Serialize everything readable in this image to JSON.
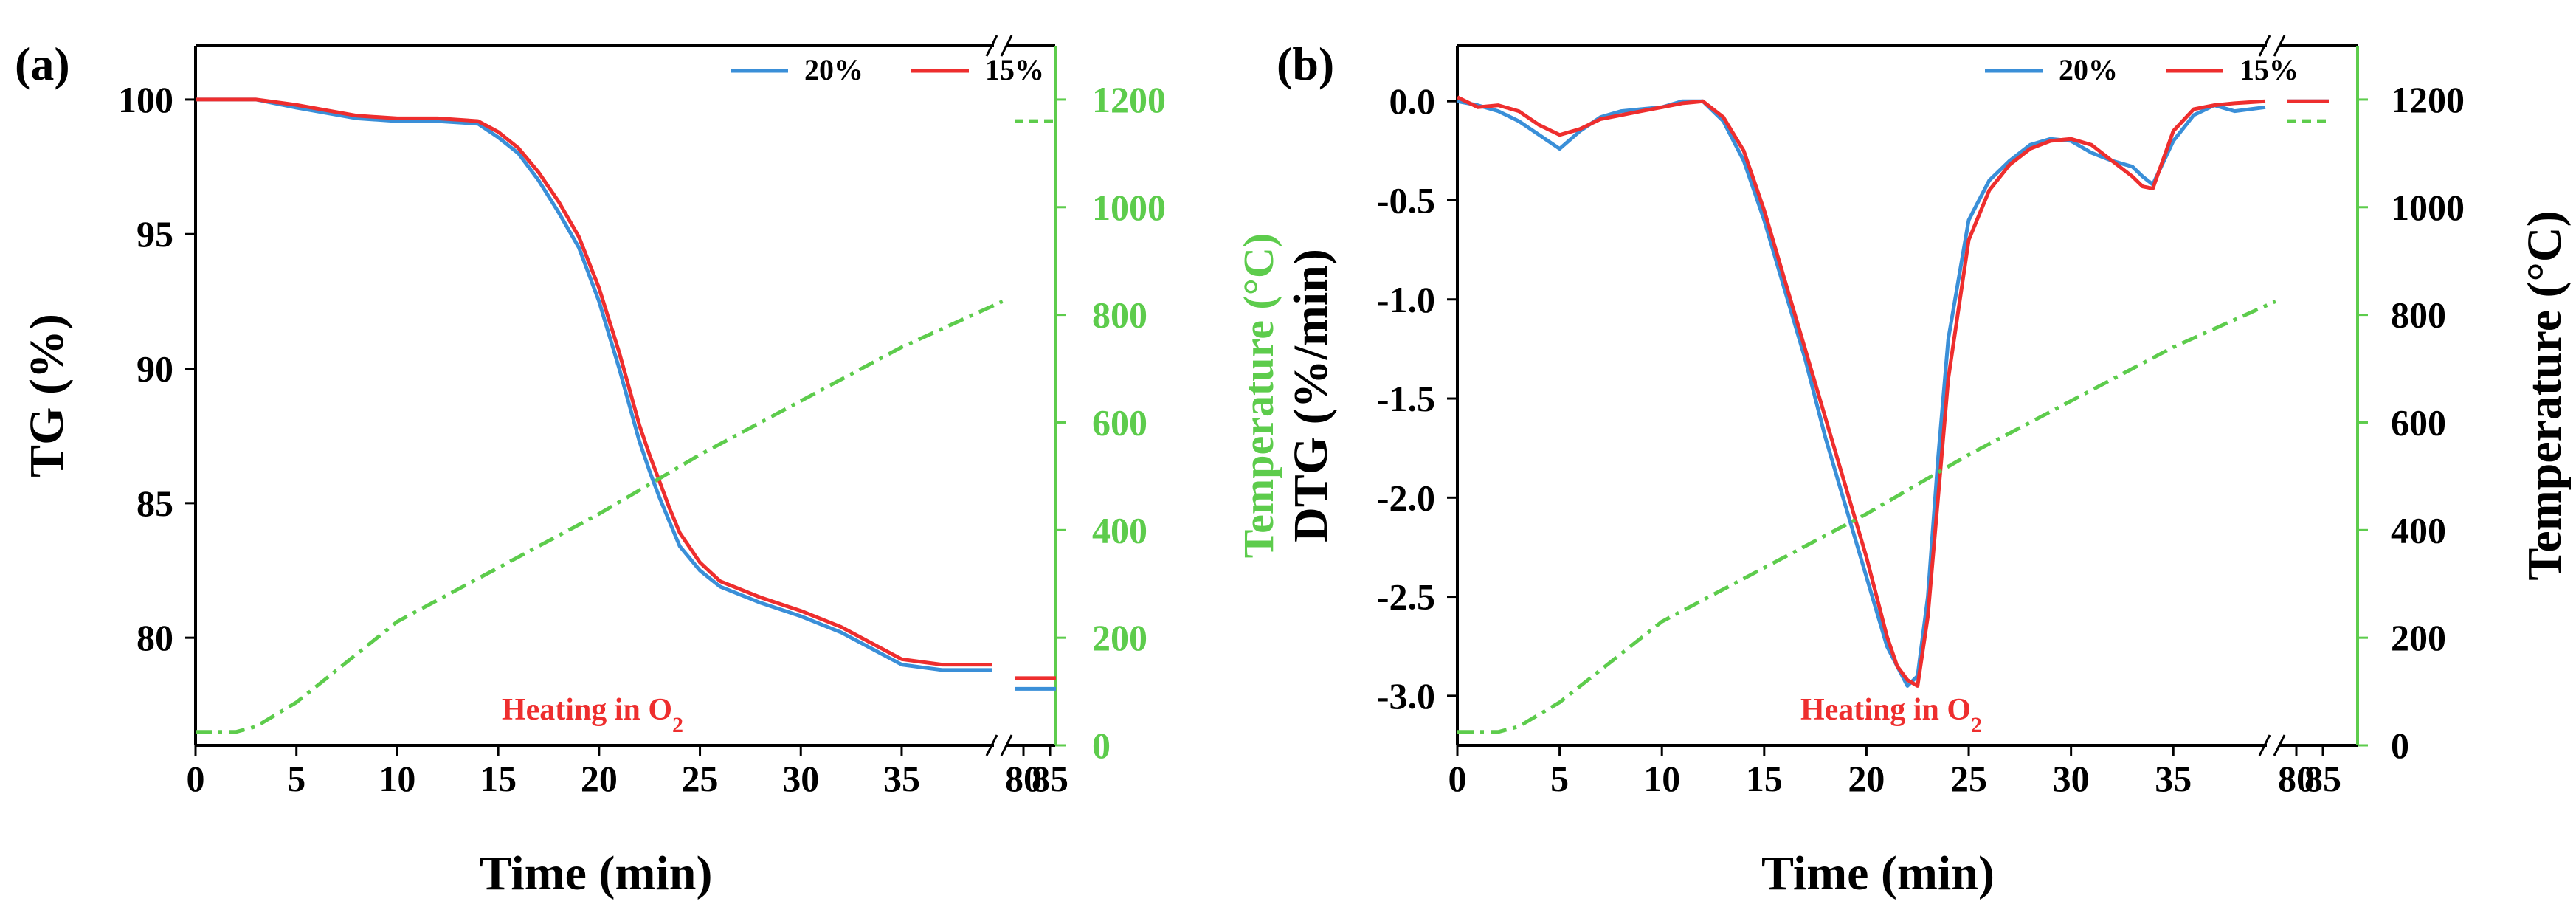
{
  "colors": {
    "s20": "#3a8fd8",
    "s15": "#ee2e2e",
    "temp": "#5dcc4c",
    "axis": "#000000"
  },
  "chart_data": [
    {
      "panel": "(a)",
      "type": "line",
      "xlabel": "Time (min)",
      "ylabel": "TG (%)",
      "y2label": "Temperature (°C)",
      "ylim": [
        76,
        102
      ],
      "y2lim": [
        0,
        1300
      ],
      "xticks": [
        "0",
        "5",
        "10",
        "15",
        "20",
        "25",
        "30",
        "35",
        "80",
        "85"
      ],
      "yticks": [
        "80",
        "85",
        "90",
        "95",
        "100"
      ],
      "y2ticks": [
        "0",
        "200",
        "400",
        "600",
        "800",
        "1000",
        "1200"
      ],
      "annotation": "Heating in O",
      "annotation_sub": "2",
      "legend": [
        "20%",
        "15%"
      ],
      "series": [
        {
          "name": "20%",
          "x": [
            0,
            3,
            5,
            8,
            10,
            12,
            14,
            15,
            16,
            17,
            18,
            19,
            20,
            21,
            22,
            22.5,
            23,
            23.5,
            24,
            25,
            26,
            28,
            30,
            32,
            34,
            35,
            36,
            37,
            38,
            39.5
          ],
          "y": [
            100,
            100,
            99.7,
            99.3,
            99.2,
            99.2,
            99.1,
            98.6,
            98,
            97,
            95.8,
            94.5,
            92.5,
            90,
            87.3,
            86.2,
            85.2,
            84.3,
            83.4,
            82.5,
            81.9,
            81.3,
            80.8,
            80.2,
            79.4,
            79,
            78.9,
            78.8,
            78.8,
            78.8
          ]
        },
        {
          "name": "15%",
          "x": [
            0,
            3,
            5,
            8,
            10,
            12,
            14,
            15,
            16,
            17,
            18,
            19,
            20,
            21,
            22,
            22.5,
            23,
            23.5,
            24,
            25,
            26,
            28,
            30,
            32,
            34,
            35,
            36,
            37,
            38,
            39.5
          ],
          "y": [
            100,
            100,
            99.8,
            99.4,
            99.3,
            99.3,
            99.2,
            98.8,
            98.2,
            97.3,
            96.2,
            94.9,
            93,
            90.6,
            87.9,
            86.8,
            85.8,
            84.8,
            83.9,
            82.8,
            82.1,
            81.5,
            81,
            80.4,
            79.6,
            79.2,
            79.1,
            79,
            79,
            79
          ]
        },
        {
          "name": "Temperature",
          "axis": "y2",
          "x": [
            0,
            2,
            3,
            5,
            10,
            15,
            20,
            25,
            30,
            35,
            40
          ],
          "y": [
            25,
            25,
            35,
            80,
            230,
            330,
            430,
            540,
            640,
            740,
            825
          ]
        }
      ],
      "broken_segment": [
        {
          "name": "20%",
          "y": 78.1
        },
        {
          "name": "15%",
          "y": 78.5
        },
        {
          "name": "Temperature",
          "y": 1160
        }
      ]
    },
    {
      "panel": "(b)",
      "type": "line",
      "xlabel": "Time (min)",
      "ylabel": "DTG (%/min)",
      "y2label": "Temperature (°C)",
      "ylim": [
        -3.25,
        0.28
      ],
      "y2lim": [
        0,
        1300
      ],
      "xticks": [
        "0",
        "5",
        "10",
        "15",
        "20",
        "25",
        "30",
        "35",
        "80",
        "85"
      ],
      "yticks": [
        "-3.0",
        "-2.5",
        "-2.0",
        "-1.5",
        "-1.0",
        "-0.5",
        "0.0"
      ],
      "y2ticks": [
        "0",
        "200",
        "400",
        "600",
        "800",
        "1000",
        "1200"
      ],
      "annotation": "Heating in O",
      "annotation_sub": "2",
      "legend": [
        "20%",
        "15%"
      ],
      "series": [
        {
          "name": "20%",
          "x": [
            0,
            1,
            2,
            3,
            4,
            5,
            6,
            7,
            8,
            9,
            10,
            11,
            12,
            13,
            14,
            15,
            16,
            17,
            18,
            19,
            20,
            21,
            21.5,
            22,
            22.5,
            23,
            23.5,
            24,
            25,
            26,
            27,
            28,
            29,
            30,
            31,
            32,
            33,
            33.5,
            34,
            35,
            36,
            37,
            38,
            39.5
          ],
          "y": [
            0,
            -0.02,
            -0.05,
            -0.1,
            -0.17,
            -0.24,
            -0.15,
            -0.08,
            -0.05,
            -0.04,
            -0.03,
            0,
            0,
            -0.1,
            -0.3,
            -0.6,
            -0.95,
            -1.3,
            -1.7,
            -2.05,
            -2.4,
            -2.75,
            -2.85,
            -2.95,
            -2.9,
            -2.5,
            -1.8,
            -1.2,
            -0.6,
            -0.4,
            -0.3,
            -0.22,
            -0.19,
            -0.2,
            -0.26,
            -0.3,
            -0.33,
            -0.38,
            -0.42,
            -0.2,
            -0.07,
            -0.02,
            -0.05,
            -0.03
          ]
        },
        {
          "name": "15%",
          "x": [
            0,
            1,
            2,
            3,
            4,
            5,
            6,
            7,
            8,
            9,
            10,
            11,
            12,
            13,
            14,
            15,
            16,
            17,
            18,
            19,
            20,
            21,
            21.5,
            22,
            22.5,
            23,
            23.5,
            24,
            25,
            26,
            27,
            28,
            29,
            30,
            31,
            32,
            33,
            33.5,
            34,
            35,
            36,
            37,
            38,
            39.5
          ],
          "y": [
            0.02,
            -0.03,
            -0.02,
            -0.05,
            -0.12,
            -0.17,
            -0.14,
            -0.09,
            -0.07,
            -0.05,
            -0.03,
            -0.01,
            0,
            -0.08,
            -0.25,
            -0.55,
            -0.9,
            -1.25,
            -1.6,
            -1.95,
            -2.3,
            -2.7,
            -2.85,
            -2.92,
            -2.95,
            -2.6,
            -2.0,
            -1.4,
            -0.7,
            -0.45,
            -0.32,
            -0.24,
            -0.2,
            -0.19,
            -0.22,
            -0.3,
            -0.38,
            -0.43,
            -0.44,
            -0.15,
            -0.04,
            -0.02,
            -0.01,
            0
          ]
        },
        {
          "name": "Temperature",
          "axis": "y2",
          "x": [
            0,
            2,
            3,
            5,
            10,
            15,
            20,
            25,
            30,
            35,
            40
          ],
          "y": [
            25,
            25,
            35,
            80,
            230,
            330,
            430,
            540,
            640,
            740,
            825
          ]
        }
      ],
      "broken_segment": [
        {
          "name": "20%",
          "y": 0
        },
        {
          "name": "15%",
          "y": 0
        },
        {
          "name": "Temperature",
          "y": 1160
        }
      ]
    }
  ]
}
